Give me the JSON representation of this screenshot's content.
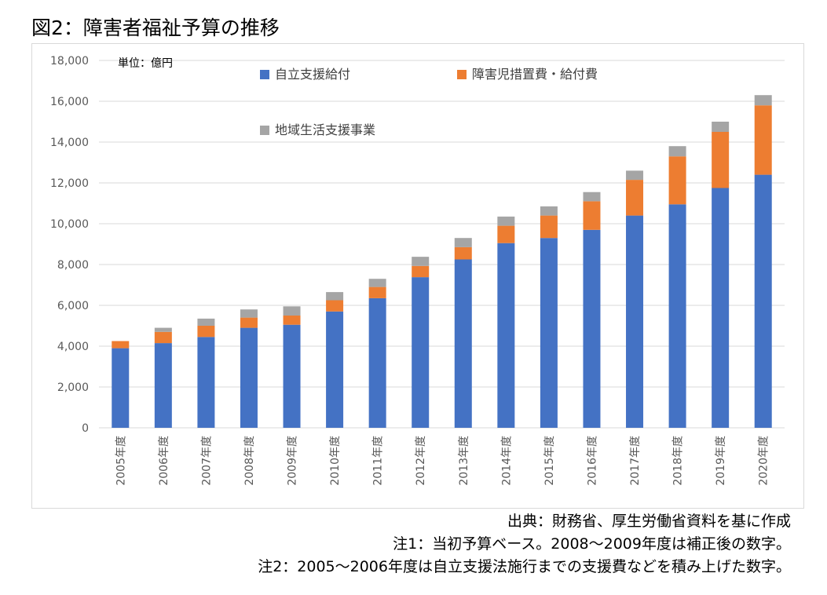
{
  "figure_title": "図2：障害者福祉予算の推移",
  "unit_label": "単位：億円",
  "colors": {
    "jiritsu": "#4472C4",
    "shogaiji": "#ED7D31",
    "chiiki": "#A5A5A5",
    "grid": "#D9D9D9",
    "axis_text": "#595959"
  },
  "chart_data": {
    "type": "bar",
    "stacked": true,
    "categories": [
      "2005年度",
      "2006年度",
      "2007年度",
      "2008年度",
      "2009年度",
      "2010年度",
      "2011年度",
      "2012年度",
      "2013年度",
      "2014年度",
      "2015年度",
      "2016年度",
      "2017年度",
      "2018年度",
      "2019年度",
      "2020年度"
    ],
    "series": [
      {
        "name": "自立支援給付",
        "color": "#4472C4",
        "values": [
          3900,
          4150,
          4450,
          4900,
          5050,
          5700,
          6350,
          7380,
          8250,
          9050,
          9300,
          9700,
          10400,
          10950,
          11750,
          12400
        ]
      },
      {
        "name": "障害児措置費・給付費",
        "color": "#ED7D31",
        "values": [
          350,
          550,
          550,
          500,
          450,
          550,
          550,
          550,
          600,
          850,
          1100,
          1400,
          1750,
          2350,
          2750,
          3400
        ]
      },
      {
        "name": "地域生活支援事業",
        "color": "#A5A5A5",
        "values": [
          0,
          200,
          350,
          400,
          450,
          400,
          400,
          450,
          450,
          450,
          450,
          450,
          450,
          500,
          500,
          500
        ]
      }
    ],
    "yticks": [
      "0",
      "2,000",
      "4,000",
      "6,000",
      "8,000",
      "10,000",
      "12,000",
      "14,000",
      "16,000",
      "18,000"
    ],
    "ylim": [
      0,
      18000
    ],
    "grid": true,
    "legend_position": "top-left"
  },
  "notes": [
    "出典：財務省、厚生労働省資料を基に作成",
    "注1：当初予算ベース。2008～2009年度は補正後の数字。",
    "注2：2005～2006年度は自立支援法施行までの支援費などを積み上げた数字。"
  ]
}
